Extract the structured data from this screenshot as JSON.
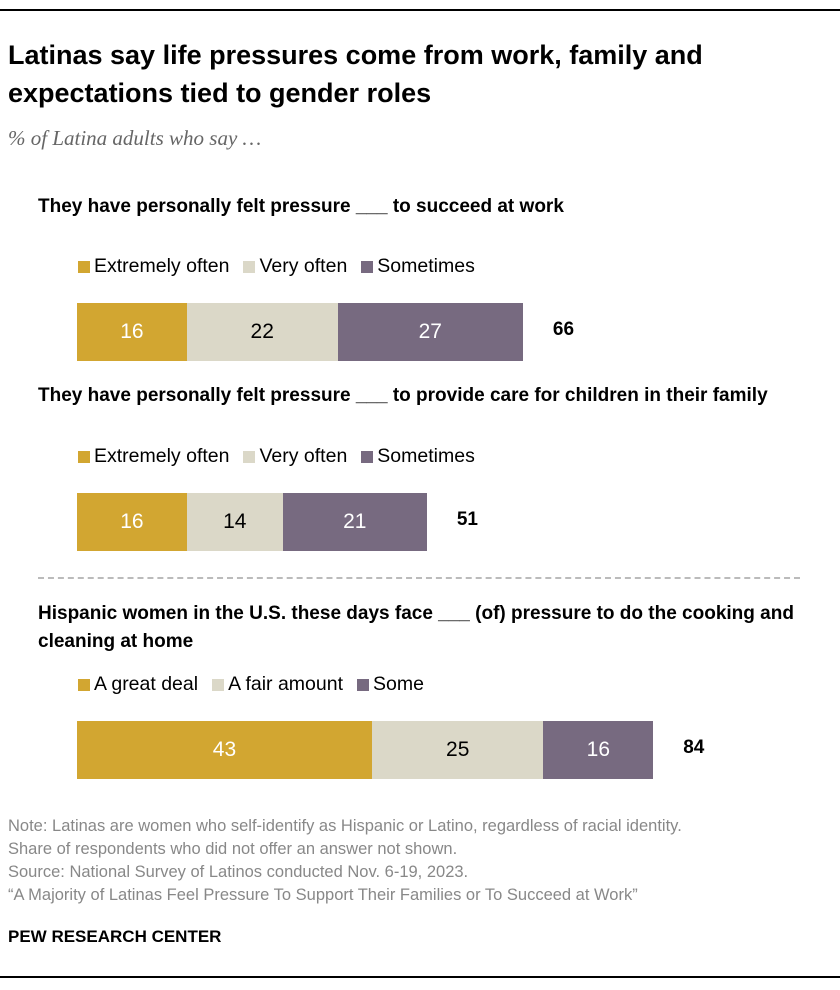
{
  "title": "Latinas say life pressures come from work, family and expectations tied to gender roles",
  "subtitle": "% of Latina adults who say …",
  "colors": [
    "#d2a631",
    "#dbd8c8",
    "#776a80"
  ],
  "label_colors": [
    "#ffffff",
    "#000000",
    "#ffffff"
  ],
  "chart_data": [
    {
      "type": "bar",
      "stacked": true,
      "orientation": "horizontal",
      "title": "They have personally felt pressure ___ to succeed at work",
      "legend": [
        "Extremely often",
        "Very often",
        "Sometimes"
      ],
      "values": [
        16,
        22,
        27
      ],
      "total": 66
    },
    {
      "type": "bar",
      "stacked": true,
      "orientation": "horizontal",
      "title": "They have personally felt pressure ___ to provide care for children in their family",
      "legend": [
        "Extremely often",
        "Very often",
        "Sometimes"
      ],
      "values": [
        16,
        14,
        21
      ],
      "total": 51
    },
    {
      "type": "bar",
      "stacked": true,
      "orientation": "horizontal",
      "title": "Hispanic women in the U.S. these days face ___ (of) pressure to do the cooking and cleaning at home",
      "legend": [
        "A great deal",
        "A fair amount",
        "Some"
      ],
      "values": [
        43,
        25,
        16
      ],
      "total": 84
    }
  ],
  "notes": [
    "Note: Latinas are women who self-identify as Hispanic or Latino, regardless of racial identity.",
    "Share of respondents who did not offer an answer not shown.",
    "Source: National Survey of Latinos conducted Nov. 6-19, 2023.",
    "“A Majority of Latinas Feel Pressure To Support Their Families or To Succeed at Work”"
  ],
  "brand": "PEW RESEARCH CENTER"
}
